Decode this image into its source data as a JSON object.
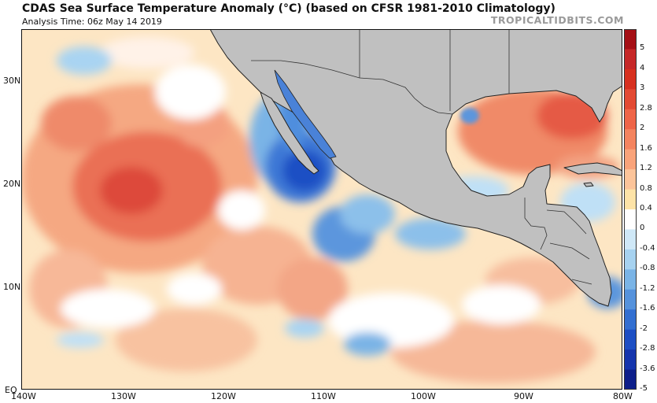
{
  "header": {
    "title": "CDAS Sea Surface Temperature Anomaly (°C) (based on CFSR 1981-2010 Climatology)",
    "analysis_time": "Analysis Time: 06z May 14 2019",
    "brand": "TROPICALTIDBITS.COM"
  },
  "map": {
    "latitude_labels": [
      "30N",
      "20N",
      "10N",
      "EQ"
    ],
    "longitude_labels": [
      "140W",
      "130W",
      "120W",
      "110W",
      "100W",
      "90W",
      "80W"
    ],
    "land_color": "#c0c0c0",
    "coast_color": "#222222"
  },
  "colorbar": {
    "labels": [
      "5",
      "4",
      "3",
      "2.8",
      "2",
      "1.6",
      "1.2",
      "0.8",
      "0.4",
      "0",
      "-0.4",
      "-0.8",
      "-1.2",
      "-1.6",
      "-2",
      "-2.8",
      "-3.6",
      "-5"
    ],
    "colors": [
      "#a50f15",
      "#c62828",
      "#d7301f",
      "#e34a33",
      "#ef6548",
      "#f4845f",
      "#f9a37a",
      "#fcc49a",
      "#fde3a7",
      "#ffffff",
      "#cfe8f7",
      "#a6d2f0",
      "#7ab4e6",
      "#5592dc",
      "#326fd1",
      "#1d4fc4",
      "#1535ad",
      "#0d1f8a"
    ]
  }
}
